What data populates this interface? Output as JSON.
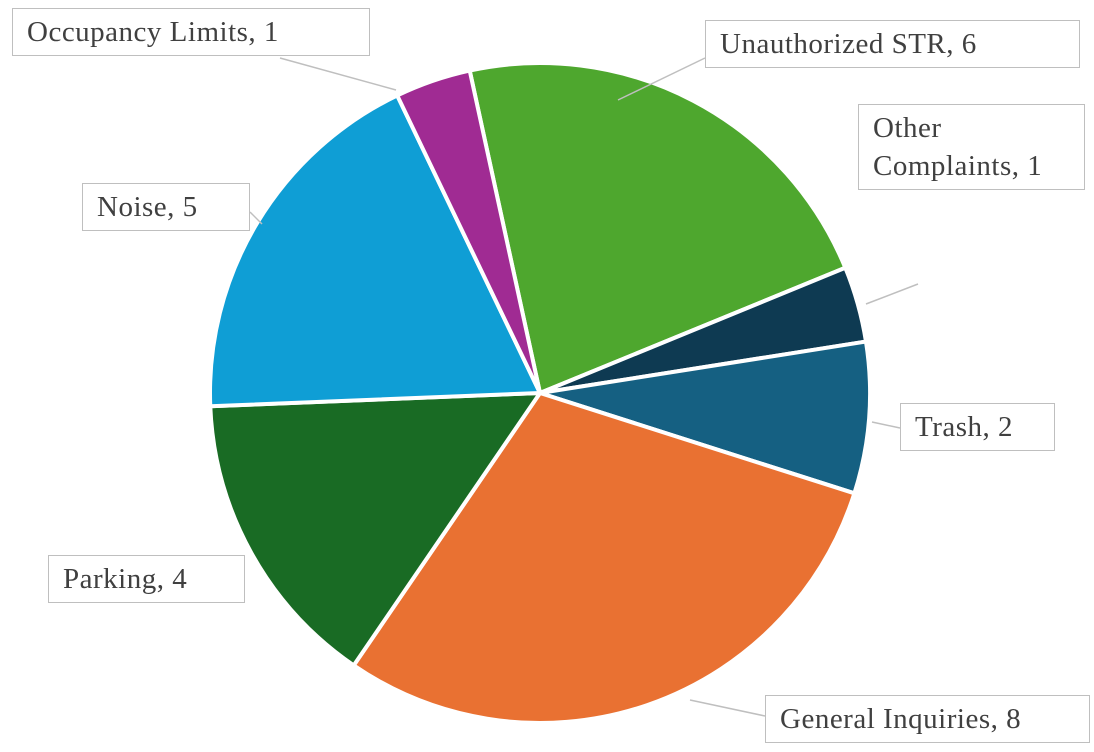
{
  "chart_data": {
    "type": "pie",
    "values": [
      6,
      1,
      2,
      8,
      4,
      5,
      1
    ],
    "value_labels": [
      "Unauthorized STR, 6",
      "Other Complaints, 1",
      "Trash, 2",
      "General Inquiries, 8",
      "Parking, 4",
      "Noise, 5",
      "Occupancy Limits, 1"
    ],
    "colors": [
      "#4ea72e",
      "#0e3a52",
      "#156082",
      "#e97132",
      "#196b24",
      "#0f9ed5",
      "#a02b93"
    ]
  }
}
